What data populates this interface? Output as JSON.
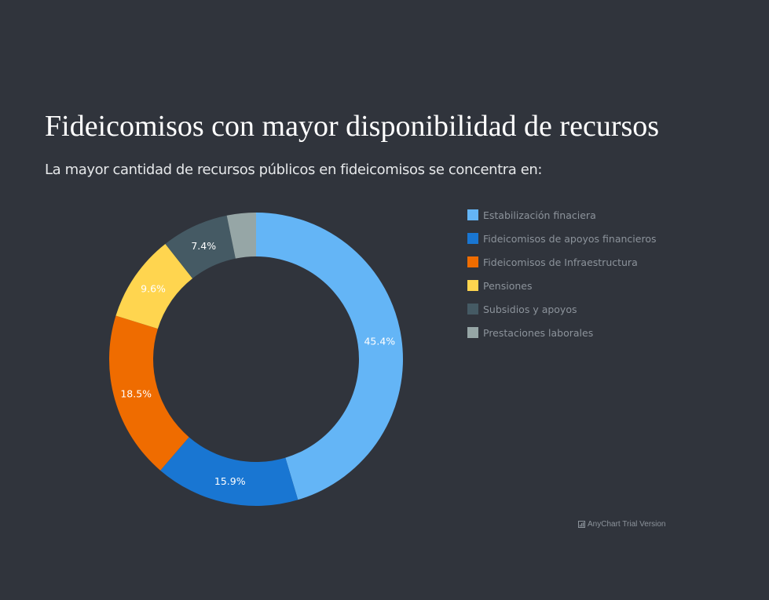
{
  "chart_data": {
    "type": "pie",
    "style": "donut",
    "title": "Fideicomisos con mayor disponibilidad de recursos",
    "subtitle": "La mayor cantidad de recursos públicos en fideicomisos se concentra en:",
    "legend_position": "right",
    "series": [
      {
        "name": "Estabilización finaciera",
        "value": 45.4,
        "label": "45.4%",
        "color": "#64b5f6"
      },
      {
        "name": "Fideicomisos de apoyos financieros",
        "value": 15.9,
        "label": "15.9%",
        "color": "#1976d2"
      },
      {
        "name": "Fideicomisos de Infraestructura",
        "value": 18.5,
        "label": "18.5%",
        "color": "#ef6c00"
      },
      {
        "name": "Pensiones",
        "value": 9.6,
        "label": "9.6%",
        "color": "#ffd54f"
      },
      {
        "name": "Subsidios y apoyos",
        "value": 7.4,
        "label": "7.4%",
        "color": "#455a64"
      },
      {
        "name": "Prestaciones laborales",
        "value": 3.2,
        "label": "",
        "color": "#96a6a6"
      }
    ]
  },
  "credits": {
    "text": "AnyChart Trial Version"
  }
}
